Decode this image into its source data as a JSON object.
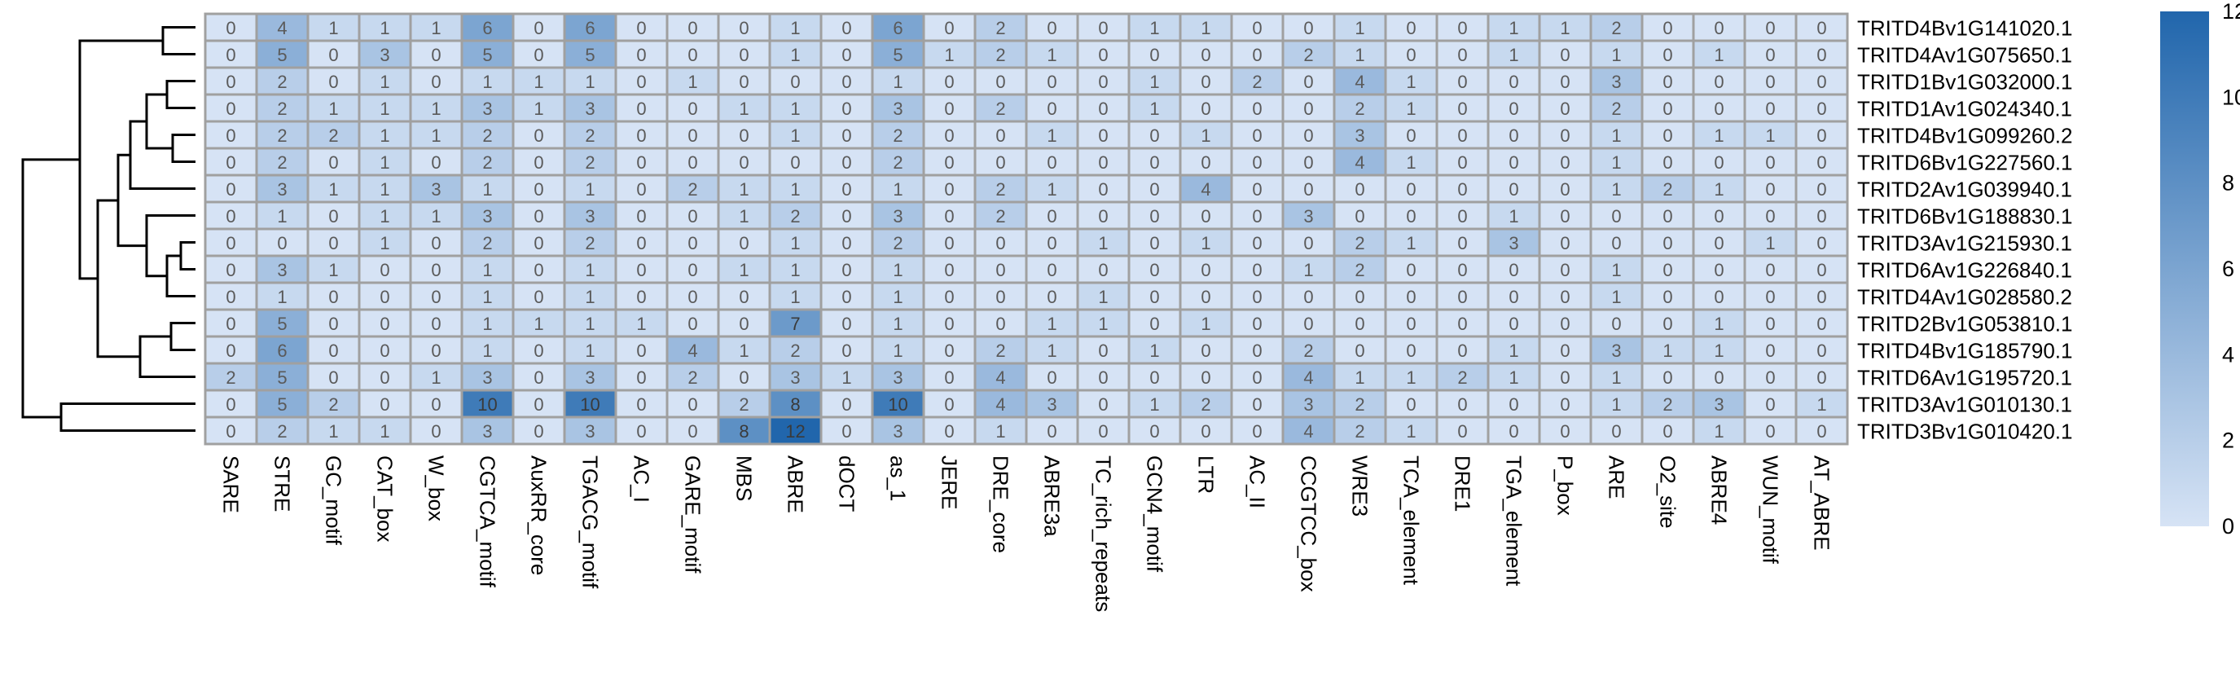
{
  "chart_data": {
    "type": "heatmap",
    "rows": [
      "TRITD4Bv1G141020.1",
      "TRITD4Av1G075650.1",
      "TRITD1Bv1G032000.1",
      "TRITD1Av1G024340.1",
      "TRITD4Bv1G099260.2",
      "TRITD6Bv1G227560.1",
      "TRITD2Av1G039940.1",
      "TRITD6Bv1G188830.1",
      "TRITD3Av1G215930.1",
      "TRITD6Av1G226840.1",
      "TRITD4Av1G028580.2",
      "TRITD2Bv1G053810.1",
      "TRITD4Bv1G185790.1",
      "TRITD6Av1G195720.1",
      "TRITD3Av1G010130.1",
      "TRITD3Bv1G010420.1"
    ],
    "columns": [
      "SARE",
      "STRE",
      "GC_motif",
      "CAT_box",
      "W_box",
      "CGTCA_motif",
      "AuxRR_core",
      "TGACG_motif",
      "AC_I",
      "GARE_motif",
      "MBS",
      "ABRE",
      "dOCT",
      "as_1",
      "JERE",
      "DRE_core",
      "ABRE3a",
      "TC_rich_repeats",
      "GCN4_motif",
      "LTR",
      "AC_II",
      "CCGTCC_box",
      "WRE3",
      "TCA_element",
      "DRE1",
      "TGA_element",
      "P_box",
      "ARE",
      "O2_site",
      "ABRE4",
      "WUN_motif",
      "AT_ABRE"
    ],
    "values": [
      [
        0,
        4,
        1,
        1,
        1,
        6,
        0,
        6,
        0,
        0,
        0,
        1,
        0,
        6,
        0,
        2,
        0,
        0,
        1,
        1,
        0,
        0,
        1,
        0,
        0,
        1,
        1,
        2,
        0,
        0,
        0,
        0
      ],
      [
        0,
        5,
        0,
        3,
        0,
        5,
        0,
        5,
        0,
        0,
        0,
        1,
        0,
        5,
        1,
        2,
        1,
        0,
        0,
        0,
        0,
        2,
        1,
        0,
        0,
        1,
        0,
        1,
        0,
        1,
        0,
        0
      ],
      [
        0,
        2,
        0,
        1,
        0,
        1,
        1,
        1,
        0,
        1,
        0,
        0,
        0,
        1,
        0,
        0,
        0,
        0,
        1,
        0,
        2,
        0,
        4,
        1,
        0,
        0,
        0,
        3,
        0,
        0,
        0,
        0
      ],
      [
        0,
        2,
        1,
        1,
        1,
        3,
        1,
        3,
        0,
        0,
        1,
        1,
        0,
        3,
        0,
        2,
        0,
        0,
        1,
        0,
        0,
        0,
        2,
        1,
        0,
        0,
        0,
        2,
        0,
        0,
        0,
        0
      ],
      [
        0,
        2,
        2,
        1,
        1,
        2,
        0,
        2,
        0,
        0,
        0,
        1,
        0,
        2,
        0,
        0,
        1,
        0,
        0,
        1,
        0,
        0,
        3,
        0,
        0,
        0,
        0,
        1,
        0,
        1,
        1,
        0
      ],
      [
        0,
        2,
        0,
        1,
        0,
        2,
        0,
        2,
        0,
        0,
        0,
        0,
        0,
        2,
        0,
        0,
        0,
        0,
        0,
        0,
        0,
        0,
        4,
        1,
        0,
        0,
        0,
        1,
        0,
        0,
        0,
        0
      ],
      [
        0,
        3,
        1,
        1,
        3,
        1,
        0,
        1,
        0,
        2,
        1,
        1,
        0,
        1,
        0,
        2,
        1,
        0,
        0,
        4,
        0,
        0,
        0,
        0,
        0,
        0,
        0,
        1,
        2,
        1,
        0,
        0
      ],
      [
        0,
        1,
        0,
        1,
        1,
        3,
        0,
        3,
        0,
        0,
        1,
        2,
        0,
        3,
        0,
        2,
        0,
        0,
        0,
        0,
        0,
        3,
        0,
        0,
        0,
        1,
        0,
        0,
        0,
        0,
        0,
        0
      ],
      [
        0,
        0,
        0,
        1,
        0,
        2,
        0,
        2,
        0,
        0,
        0,
        1,
        0,
        2,
        0,
        0,
        0,
        1,
        0,
        1,
        0,
        0,
        2,
        1,
        0,
        3,
        0,
        0,
        0,
        0,
        1,
        0
      ],
      [
        0,
        3,
        1,
        0,
        0,
        1,
        0,
        1,
        0,
        0,
        1,
        1,
        0,
        1,
        0,
        0,
        0,
        0,
        0,
        0,
        0,
        1,
        2,
        0,
        0,
        0,
        0,
        1,
        0,
        0,
        0,
        0
      ],
      [
        0,
        1,
        0,
        0,
        0,
        1,
        0,
        1,
        0,
        0,
        0,
        1,
        0,
        1,
        0,
        0,
        0,
        1,
        0,
        0,
        0,
        0,
        0,
        0,
        0,
        0,
        0,
        1,
        0,
        0,
        0,
        0
      ],
      [
        0,
        5,
        0,
        0,
        0,
        1,
        1,
        1,
        1,
        0,
        0,
        7,
        0,
        1,
        0,
        0,
        1,
        1,
        0,
        1,
        0,
        0,
        0,
        0,
        0,
        0,
        0,
        0,
        0,
        1,
        0,
        0
      ],
      [
        0,
        6,
        0,
        0,
        0,
        1,
        0,
        1,
        0,
        4,
        1,
        2,
        0,
        1,
        0,
        2,
        1,
        0,
        1,
        0,
        0,
        2,
        0,
        0,
        0,
        1,
        0,
        3,
        1,
        1,
        0,
        0
      ],
      [
        2,
        5,
        0,
        0,
        1,
        3,
        0,
        3,
        0,
        2,
        0,
        3,
        1,
        3,
        0,
        4,
        0,
        0,
        0,
        0,
        0,
        4,
        1,
        1,
        2,
        1,
        0,
        1,
        0,
        0,
        0,
        0
      ],
      [
        0,
        5,
        2,
        0,
        0,
        10,
        0,
        10,
        0,
        0,
        2,
        8,
        0,
        10,
        0,
        4,
        3,
        0,
        1,
        2,
        0,
        3,
        2,
        0,
        0,
        0,
        0,
        1,
        2,
        3,
        0,
        1
      ],
      [
        0,
        2,
        1,
        1,
        0,
        3,
        0,
        3,
        0,
        0,
        8,
        12,
        0,
        3,
        0,
        1,
        0,
        0,
        0,
        0,
        0,
        4,
        2,
        1,
        0,
        0,
        0,
        0,
        0,
        1,
        0,
        0
      ]
    ],
    "color_scale": {
      "min": 0,
      "max": 12,
      "ticks": [
        0,
        2,
        4,
        6,
        8,
        10,
        12
      ],
      "low_color": "#d6e3f5",
      "high_color": "#2166ac"
    },
    "cell_border_color": "#a0a0a0",
    "row_dendrogram": true
  }
}
